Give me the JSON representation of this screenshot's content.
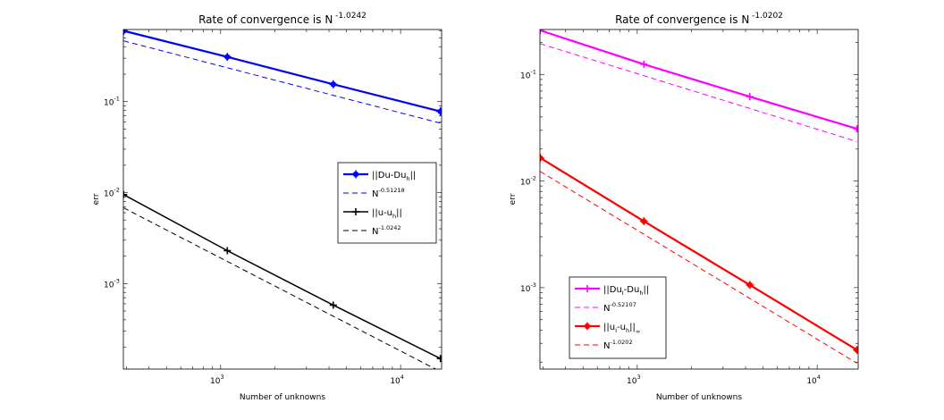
{
  "chart_data": [
    {
      "type": "line",
      "title": "Rate of convergence is N",
      "title_exponent": "-1.0242",
      "xlabel": "Number of unknowns",
      "ylabel": "err",
      "xscale": "log",
      "yscale": "log",
      "xlim": [
        288,
        16900
      ],
      "ylim": [
        0.000115,
        0.62
      ],
      "x_ticks": [
        {
          "base": "10",
          "exp": "3",
          "value": 1000
        },
        {
          "base": "10",
          "exp": "4",
          "value": 10000
        }
      ],
      "y_ticks": [
        {
          "base": "10",
          "exp": "-1",
          "value": 0.1
        },
        {
          "base": "10",
          "exp": "-2",
          "value": 0.01
        },
        {
          "base": "10",
          "exp": "-3",
          "value": 0.001
        }
      ],
      "legend_position": "center-right",
      "series": [
        {
          "name": "||Du-Du_h||",
          "legend_main": "||Du-Du",
          "legend_sub": "h",
          "legend_tail": "||",
          "color": "#0000ff",
          "style": "solid",
          "marker": "star",
          "width": 2.2,
          "x": [
            289,
            1089,
            4225,
            16641
          ],
          "y": [
            0.6,
            0.31,
            0.155,
            0.078
          ]
        },
        {
          "name": "N^-0.51218",
          "legend_main": "N",
          "legend_sup": "-0.51218",
          "color": "#0000ff",
          "style": "dashed",
          "marker": "none",
          "width": 1,
          "x": [
            289,
            16641
          ],
          "y": [
            0.465,
            0.058
          ]
        },
        {
          "name": "||u-u_h||",
          "legend_main": "||u-u",
          "legend_sub": "h",
          "legend_tail": "||",
          "color": "#000000",
          "style": "solid",
          "marker": "plus",
          "width": 1.5,
          "x": [
            289,
            1089,
            4225,
            16641
          ],
          "y": [
            0.0095,
            0.0023,
            0.00058,
            0.00015
          ]
        },
        {
          "name": "N^-1.0242",
          "legend_main": "N",
          "legend_sup": "-1.0242",
          "color": "#000000",
          "style": "dashed",
          "marker": "none",
          "width": 1,
          "x": [
            289,
            16641
          ],
          "y": [
            0.0068,
            0.000108
          ]
        }
      ]
    },
    {
      "type": "line",
      "title": "Rate of convergence is N",
      "title_exponent": "-1.0202",
      "xlabel": "Number of unknowns",
      "ylabel": "err",
      "xscale": "log",
      "yscale": "log",
      "xlim": [
        288,
        16900
      ],
      "ylim": [
        0.000172,
        0.265
      ],
      "x_ticks": [
        {
          "base": "10",
          "exp": "3",
          "value": 1000
        },
        {
          "base": "10",
          "exp": "4",
          "value": 10000
        }
      ],
      "y_ticks": [
        {
          "base": "10",
          "exp": "-1",
          "value": 0.1
        },
        {
          "base": "10",
          "exp": "-2",
          "value": 0.01
        },
        {
          "base": "10",
          "exp": "-3",
          "value": 0.001
        }
      ],
      "legend_position": "bottom-left",
      "series": [
        {
          "name": "||Du_I-Du_h||",
          "legend_main": "||Du",
          "legend_sub": "I",
          "legend_mid": "-Du",
          "legend_sub2": "h",
          "legend_tail": "||",
          "color": "#ff00ff",
          "style": "solid",
          "marker": "plus",
          "width": 2.2,
          "x": [
            289,
            1089,
            4225,
            16641
          ],
          "y": [
            0.26,
            0.125,
            0.062,
            0.031
          ]
        },
        {
          "name": "N^-0.52107",
          "legend_main": "N",
          "legend_sup": "-0.52107",
          "color": "#ff00ff",
          "style": "dashed",
          "marker": "none",
          "width": 1,
          "x": [
            289,
            16641
          ],
          "y": [
            0.195,
            0.0235
          ]
        },
        {
          "name": "||u_I-u_h||_inf",
          "legend_main": "||u",
          "legend_sub": "I",
          "legend_mid": "-u",
          "legend_sub2": "h",
          "legend_tail": "||",
          "legend_sub3": "∞",
          "color": "#ff0000",
          "style": "solid",
          "marker": "star",
          "width": 2.2,
          "x": [
            289,
            1089,
            4225,
            16641
          ],
          "y": [
            0.0165,
            0.0042,
            0.00106,
            0.00026
          ]
        },
        {
          "name": "N^-1.0202",
          "legend_main": "N",
          "legend_sup": "-1.0202",
          "color": "#ff0000",
          "style": "dashed",
          "marker": "none",
          "width": 1,
          "x": [
            289,
            16641
          ],
          "y": [
            0.0123,
            0.000195
          ]
        }
      ]
    }
  ]
}
